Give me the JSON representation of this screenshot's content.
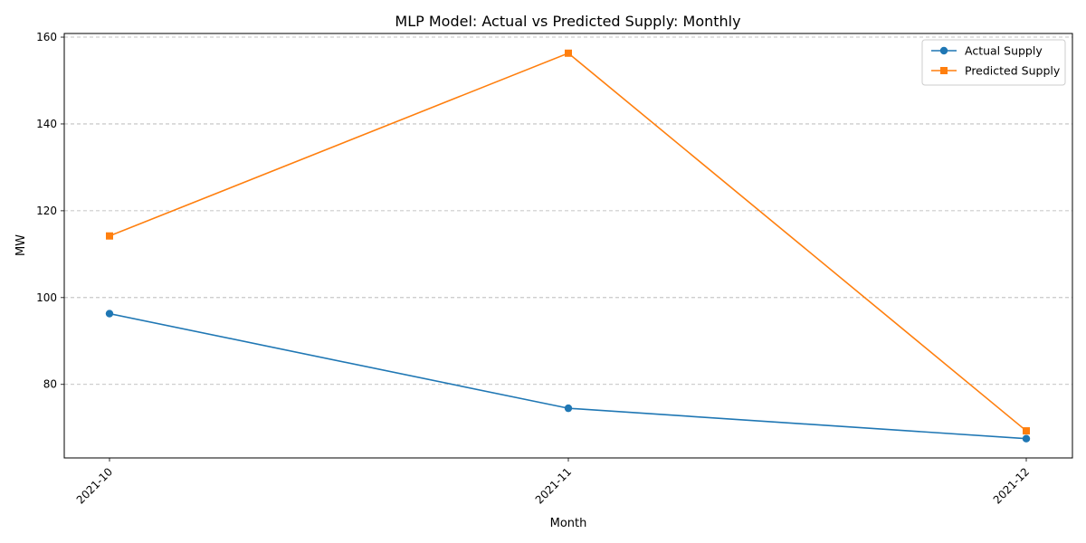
{
  "chart_data": {
    "type": "line",
    "title": "MLP Model: Actual vs Predicted Supply: Monthly",
    "xlabel": "Month",
    "ylabel": "MW",
    "categories": [
      "2021-10",
      "2021-11",
      "2021-12"
    ],
    "series": [
      {
        "name": "Actual Supply",
        "values": [
          96.3,
          74.5,
          67.5
        ],
        "color": "#1f77b4",
        "marker": "circle"
      },
      {
        "name": "Predicted Supply",
        "values": [
          114.2,
          156.3,
          69.3
        ],
        "color": "#ff7f0e",
        "marker": "square"
      }
    ],
    "ylim": [
      63.06,
      160.84
    ],
    "yticks": [
      80,
      100,
      120,
      140,
      160
    ],
    "grid": "y-dashed",
    "legend": "top-right"
  }
}
